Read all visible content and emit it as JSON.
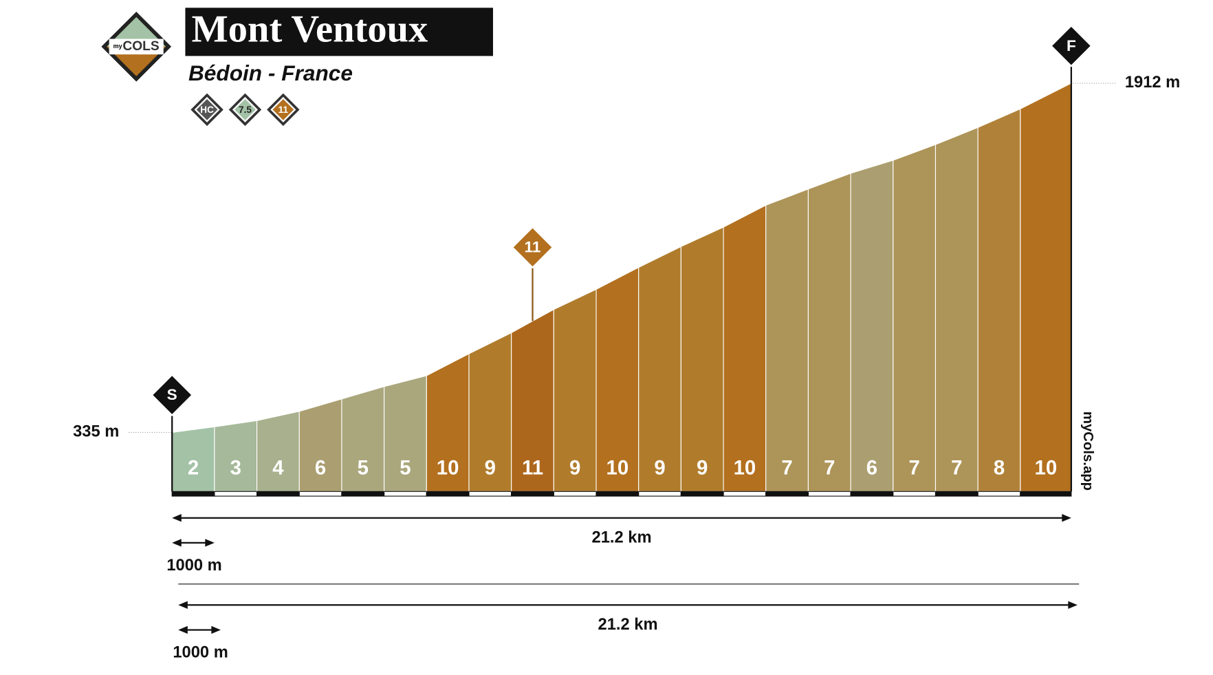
{
  "logo": {
    "small": "my",
    "big": "COLS"
  },
  "chart_data": {
    "type": "profile",
    "title": "Mont Ventoux",
    "subtitle": "Bédoin - France",
    "badges": [
      {
        "label": "HC",
        "color": "#555555"
      },
      {
        "label": 7.5,
        "color": "#a3c2a6"
      },
      {
        "label": 11,
        "color": "#b3701f"
      }
    ],
    "start_marker": "S",
    "finish_marker": "F",
    "watermark": "myCols.app",
    "max_grade": {
      "value": 11,
      "x": 8.5,
      "color": "#b3701f"
    },
    "distances": [
      0,
      1,
      2,
      3,
      4,
      5,
      6,
      7,
      8,
      9,
      10,
      11,
      12,
      13,
      14,
      15,
      16,
      17,
      18,
      19,
      20,
      21.2
    ],
    "elevations": [
      335,
      360,
      388,
      430,
      486,
      542,
      591,
      690,
      785,
      890,
      981,
      1080,
      1174,
      1262,
      1361,
      1434,
      1505,
      1564,
      1635,
      1712,
      1796,
      1912
    ],
    "grades": [
      2,
      3,
      4,
      6,
      5,
      5,
      10,
      9,
      11,
      9,
      10,
      9,
      9,
      10,
      7,
      7,
      6,
      7,
      7,
      8,
      10
    ],
    "colors": [
      "#a3c2a6",
      "#a6b99a",
      "#a8b08d",
      "#ab9e70",
      "#aaa77d",
      "#aaa77d",
      "#b3701f",
      "#b07c2c",
      "#ad671c",
      "#b07c2c",
      "#b3701f",
      "#b07c2c",
      "#b07c2c",
      "#b3701f",
      "#ad9458",
      "#ad9458",
      "#ab9e70",
      "#ad9458",
      "#ad9458",
      "#b08239",
      "#b3701f"
    ],
    "xlim": [
      0,
      21.2
    ],
    "ylim": [
      335,
      1912
    ],
    "elevation_labels": [
      {
        "value": 335,
        "label": "335 m"
      },
      {
        "value": 1912,
        "label": "1912 m"
      }
    ],
    "total_distance": {
      "value": 21.2,
      "label": "21.2 km"
    },
    "scale_bar": {
      "value": 1,
      "label": "1000 m"
    }
  }
}
